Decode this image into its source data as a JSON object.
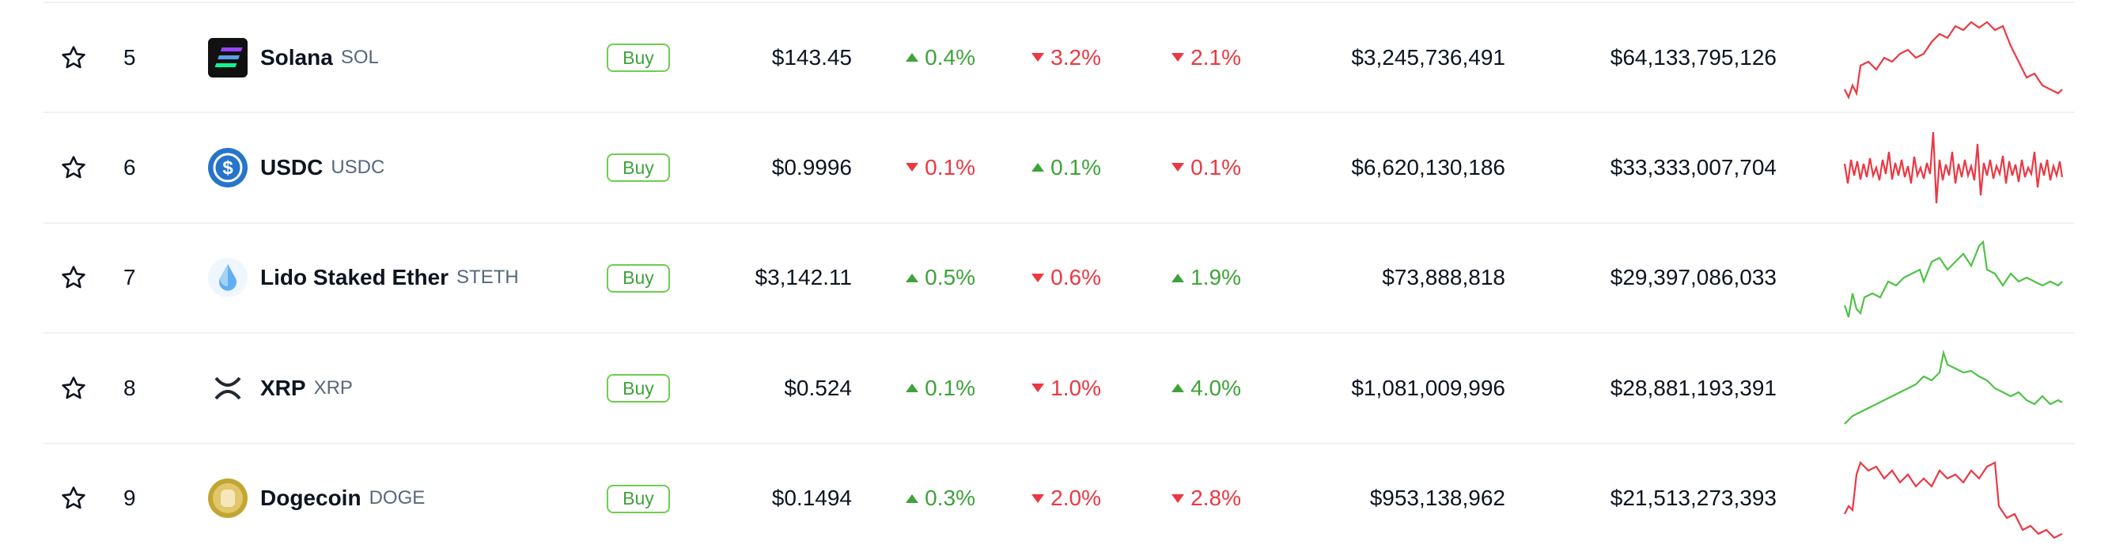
{
  "table": {
    "rows": [
      {
        "rank": 5,
        "name": "Solana",
        "symbol": "SOL",
        "action": "Buy",
        "price": "$143.45",
        "change_1h": {
          "text": "0.4%",
          "direction": "up"
        },
        "change_24h": {
          "text": "3.2%",
          "direction": "down"
        },
        "change_7d": {
          "text": "2.1%",
          "direction": "down"
        },
        "volume_24h": "$3,245,736,491",
        "market_cap": "$64,133,795,126",
        "sparkline_color": "red"
      },
      {
        "rank": 6,
        "name": "USDC",
        "symbol": "USDC",
        "action": "Buy",
        "price": "$0.9996",
        "change_1h": {
          "text": "0.1%",
          "direction": "down"
        },
        "change_24h": {
          "text": "0.1%",
          "direction": "up"
        },
        "change_7d": {
          "text": "0.1%",
          "direction": "down"
        },
        "volume_24h": "$6,620,130,186",
        "market_cap": "$33,333,007,704",
        "sparkline_color": "red"
      },
      {
        "rank": 7,
        "name": "Lido Staked Ether",
        "symbol": "STETH",
        "action": "Buy",
        "price": "$3,142.11",
        "change_1h": {
          "text": "0.5%",
          "direction": "up"
        },
        "change_24h": {
          "text": "0.6%",
          "direction": "down"
        },
        "change_7d": {
          "text": "1.9%",
          "direction": "up"
        },
        "volume_24h": "$73,888,818",
        "market_cap": "$29,397,086,033",
        "sparkline_color": "green"
      },
      {
        "rank": 8,
        "name": "XRP",
        "symbol": "XRP",
        "action": "Buy",
        "price": "$0.524",
        "change_1h": {
          "text": "0.1%",
          "direction": "up"
        },
        "change_24h": {
          "text": "1.0%",
          "direction": "down"
        },
        "change_7d": {
          "text": "4.0%",
          "direction": "up"
        },
        "volume_24h": "$1,081,009,996",
        "market_cap": "$28,881,193,391",
        "sparkline_color": "green"
      },
      {
        "rank": 9,
        "name": "Dogecoin",
        "symbol": "DOGE",
        "action": "Buy",
        "price": "$0.1494",
        "change_1h": {
          "text": "0.3%",
          "direction": "up"
        },
        "change_24h": {
          "text": "2.0%",
          "direction": "down"
        },
        "change_7d": {
          "text": "2.8%",
          "direction": "down"
        },
        "volume_24h": "$953,138,962",
        "market_cap": "$21,513,273,393",
        "sparkline_color": "red"
      }
    ]
  }
}
